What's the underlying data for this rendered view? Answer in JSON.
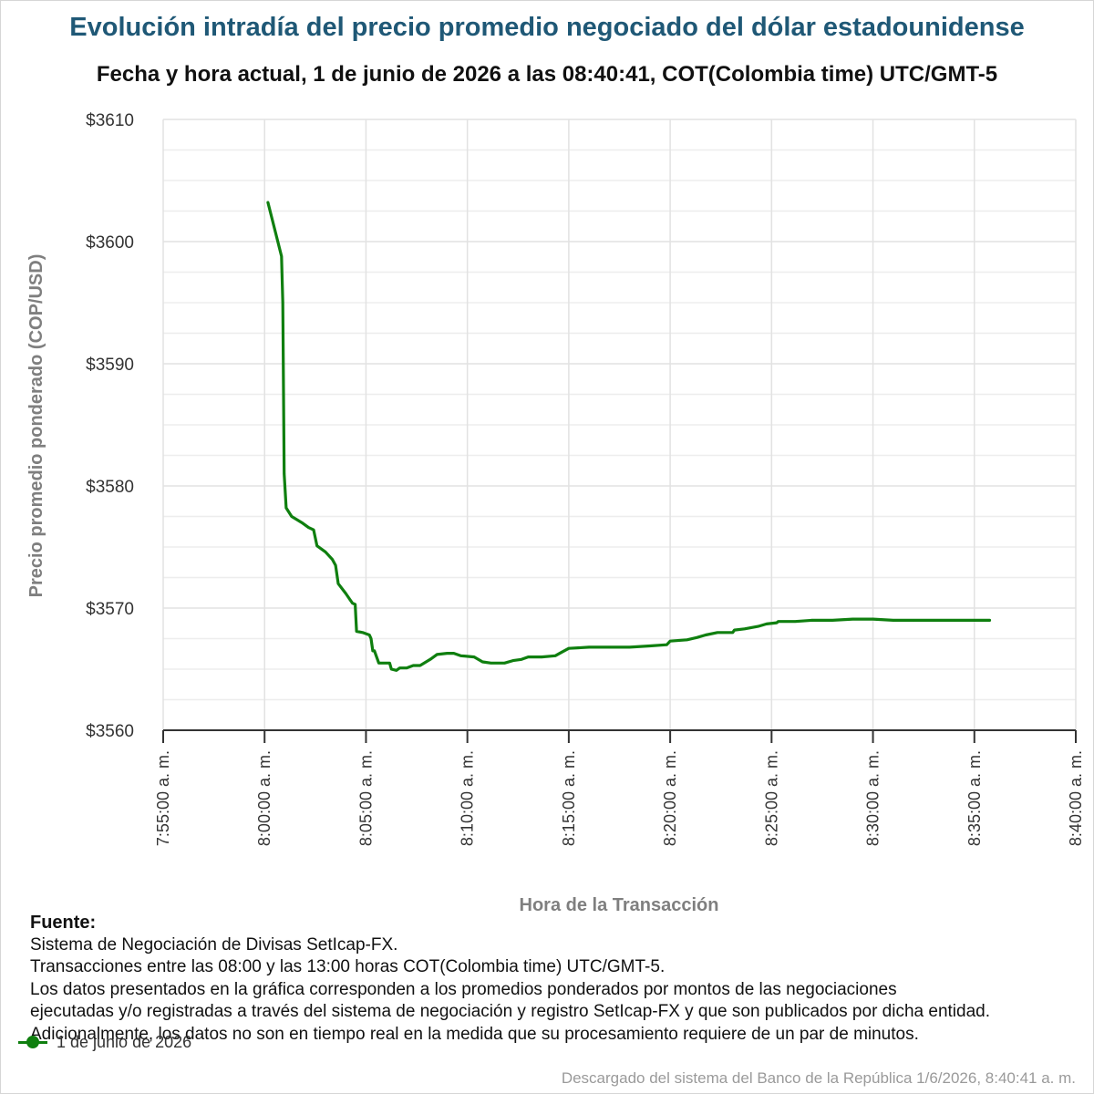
{
  "title": "Evolución intradía del precio promedio negociado del dólar estadounidense",
  "subtitle": "Fecha y hora actual, 1 de junio de 2026 a las 08:40:41, COT(Colombia time) UTC/GMT-5",
  "chart_data": {
    "type": "line",
    "ylabel": "Precio promedio ponderado (COP/USD)",
    "xlabel": "Hora de la Transacción",
    "ylim": [
      3560,
      3610
    ],
    "xlim": [
      "7:55:00 a. m.",
      "8:40:00 a. m."
    ],
    "yticks": [
      "$3610",
      "$3600",
      "$3590",
      "$3580",
      "$3570",
      "$3560"
    ],
    "xticks": [
      "7:55:00 a. m.",
      "8:00:00 a. m.",
      "8:05:00 a. m.",
      "8:10:00 a. m.",
      "8:15:00 a. m.",
      "8:20:00 a. m.",
      "8:25:00 a. m.",
      "8:30:00 a. m.",
      "8:35:00 a. m.",
      "8:40:00 a. m."
    ],
    "grid": true,
    "legend_position": "bottom-left",
    "series": [
      {
        "name": "1 de junio de 2026",
        "color": "#0f7f0f",
        "points": [
          [
            "8:00:10",
            3603.2
          ],
          [
            "8:00:50",
            3598.8
          ],
          [
            "8:00:54",
            3595.0
          ],
          [
            "8:00:58",
            3581.0
          ],
          [
            "8:01:04",
            3578.2
          ],
          [
            "8:01:20",
            3577.5
          ],
          [
            "8:01:50",
            3577.0
          ],
          [
            "8:02:10",
            3576.6
          ],
          [
            "8:02:25",
            3576.4
          ],
          [
            "8:02:35",
            3575.1
          ],
          [
            "8:03:00",
            3574.6
          ],
          [
            "8:03:20",
            3574.0
          ],
          [
            "8:03:30",
            3573.5
          ],
          [
            "8:03:38",
            3572.0
          ],
          [
            "8:04:00",
            3571.2
          ],
          [
            "8:04:20",
            3570.4
          ],
          [
            "8:04:28",
            3570.3
          ],
          [
            "8:04:32",
            3568.1
          ],
          [
            "8:04:50",
            3568.0
          ],
          [
            "8:05:10",
            3567.8
          ],
          [
            "8:05:15",
            3567.5
          ],
          [
            "8:05:20",
            3566.5
          ],
          [
            "8:05:25",
            3566.5
          ],
          [
            "8:05:38",
            3565.5
          ],
          [
            "8:06:10",
            3565.5
          ],
          [
            "8:06:15",
            3565.0
          ],
          [
            "8:06:30",
            3564.9
          ],
          [
            "8:06:40",
            3565.1
          ],
          [
            "8:07:00",
            3565.1
          ],
          [
            "8:07:20",
            3565.3
          ],
          [
            "8:07:40",
            3565.3
          ],
          [
            "8:08:10",
            3565.8
          ],
          [
            "8:08:30",
            3566.2
          ],
          [
            "8:09:00",
            3566.3
          ],
          [
            "8:09:20",
            3566.3
          ],
          [
            "8:09:40",
            3566.1
          ],
          [
            "8:10:20",
            3566.0
          ],
          [
            "8:10:45",
            3565.6
          ],
          [
            "8:11:10",
            3565.5
          ],
          [
            "8:11:50",
            3565.5
          ],
          [
            "8:12:15",
            3565.7
          ],
          [
            "8:12:40",
            3565.8
          ],
          [
            "8:13:00",
            3566.0
          ],
          [
            "8:13:40",
            3566.0
          ],
          [
            "8:14:20",
            3566.1
          ],
          [
            "8:14:40",
            3566.4
          ],
          [
            "8:15:00",
            3566.7
          ],
          [
            "8:16:00",
            3566.8
          ],
          [
            "8:17:00",
            3566.8
          ],
          [
            "8:18:00",
            3566.8
          ],
          [
            "8:19:00",
            3566.9
          ],
          [
            "8:19:50",
            3567.0
          ],
          [
            "8:20:00",
            3567.3
          ],
          [
            "8:20:50",
            3567.4
          ],
          [
            "8:21:20",
            3567.6
          ],
          [
            "8:21:45",
            3567.8
          ],
          [
            "8:22:20",
            3568.0
          ],
          [
            "8:23:05",
            3568.0
          ],
          [
            "8:23:10",
            3568.2
          ],
          [
            "8:23:40",
            3568.3
          ],
          [
            "8:24:20",
            3568.5
          ],
          [
            "8:24:45",
            3568.7
          ],
          [
            "8:25:15",
            3568.8
          ],
          [
            "8:25:20",
            3568.9
          ],
          [
            "8:26:10",
            3568.9
          ],
          [
            "8:27:00",
            3569.0
          ],
          [
            "8:28:00",
            3569.0
          ],
          [
            "8:29:00",
            3569.1
          ],
          [
            "8:30:00",
            3569.1
          ],
          [
            "8:31:00",
            3569.0
          ],
          [
            "8:32:00",
            3569.0
          ],
          [
            "8:33:00",
            3569.0
          ],
          [
            "8:34:00",
            3569.0
          ],
          [
            "8:35:00",
            3569.0
          ],
          [
            "8:35:45",
            3569.0
          ]
        ]
      }
    ]
  },
  "footer": {
    "heading": "Fuente:",
    "lines": [
      "Sistema de Negociación de Divisas SetIcap-FX.",
      "Transacciones entre las 08:00 y las 13:00 horas COT(Colombia time) UTC/GMT-5.",
      "Los datos presentados en la gráfica corresponden a los promedios ponderados por montos de las negociaciones",
      "ejecutadas y/o registradas a través del sistema de negociación y registro SetIcap-FX y que son publicados por dicha entidad.",
      "Adicionalmente, los datos no son en tiempo real en la medida que su procesamiento requiere de un par de minutos."
    ]
  },
  "legend": {
    "label": "1 de junio de 2026",
    "color": "#0f7f0f"
  },
  "download_note": "Descargado del sistema del Banco de la República 1/6/2026, 8:40:41 a. m."
}
